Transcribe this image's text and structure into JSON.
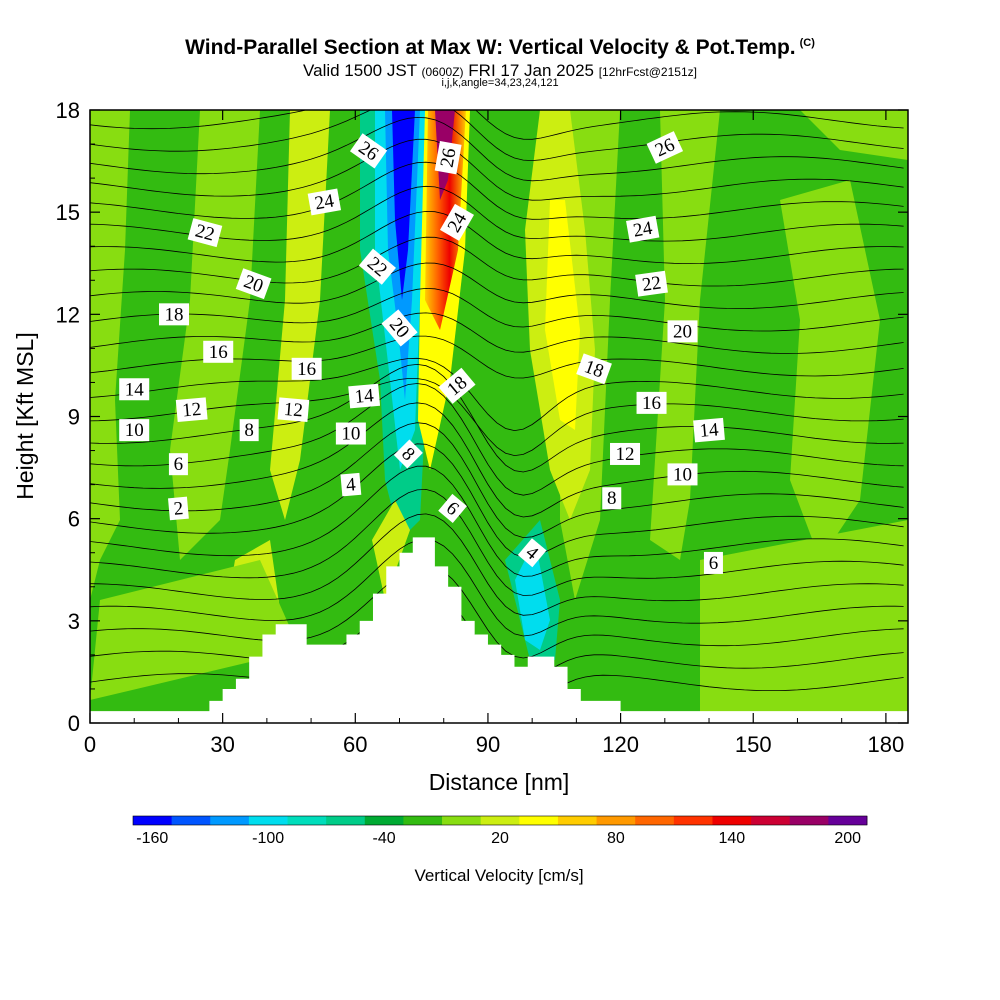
{
  "header": {
    "title": "Wind-Parallel Section at Max W: Vertical Velocity & Pot.Temp.",
    "copyright": "(C)",
    "valid_prefix": "Valid 1500 JST",
    "valid_z": "(0600Z)",
    "valid_date": "FRI 17 Jan 2025",
    "valid_fcst": "[12hrFcst@2151z]",
    "params": "i,j,k,angle=34,23,24,121"
  },
  "colors": {
    "scale": [
      "#0000ff",
      "#0055ff",
      "#0099ff",
      "#00ddee",
      "#00ddbb",
      "#00cc88",
      "#00aa33",
      "#33bb11",
      "#88dd11",
      "#ccee11",
      "#ffff00",
      "#ffcc00",
      "#ff9900",
      "#ff6600",
      "#ff3300",
      "#ee0000",
      "#cc0033",
      "#990066",
      "#660099"
    ],
    "background_w": "#33bb11",
    "terrain": "#ffffff"
  },
  "colorbar": {
    "labels": [
      "-160",
      "-100",
      "-40",
      "20",
      "80",
      "140",
      "200"
    ],
    "title": "Vertical Velocity [cm/s]"
  },
  "chart_data": {
    "type": "heatmap",
    "title": "Wind-Parallel Section at Max W: Vertical Velocity & Pot.Temp.",
    "xlabel": "Distance [nm]",
    "ylabel": "Height [Kft MSL]",
    "xlim": [
      0,
      185
    ],
    "ylim": [
      0,
      18
    ],
    "x_ticks": [
      "0",
      "30",
      "60",
      "90",
      "120",
      "150",
      "180"
    ],
    "y_ticks": [
      "0",
      "3",
      "6",
      "9",
      "12",
      "15",
      "18"
    ],
    "colorbar_values": [
      -160,
      -100,
      -40,
      20,
      80,
      140,
      200
    ],
    "colorbar_label": "Vertical Velocity [cm/s]",
    "terrain_profile": [
      {
        "x": 0,
        "h": 0.35
      },
      {
        "x": 25,
        "h": 0.35
      },
      {
        "x": 27,
        "h": 0.65
      },
      {
        "x": 30,
        "h": 1.0
      },
      {
        "x": 33,
        "h": 1.3
      },
      {
        "x": 36,
        "h": 1.95
      },
      {
        "x": 39,
        "h": 2.6
      },
      {
        "x": 42,
        "h": 2.9
      },
      {
        "x": 49,
        "h": 2.3
      },
      {
        "x": 58,
        "h": 2.6
      },
      {
        "x": 61,
        "h": 3.0
      },
      {
        "x": 64,
        "h": 3.8
      },
      {
        "x": 67,
        "h": 4.6
      },
      {
        "x": 70,
        "h": 5.0
      },
      {
        "x": 73,
        "h": 5.45
      },
      {
        "x": 78,
        "h": 4.6
      },
      {
        "x": 81,
        "h": 4.0
      },
      {
        "x": 84,
        "h": 3.0
      },
      {
        "x": 87,
        "h": 2.6
      },
      {
        "x": 90,
        "h": 2.3
      },
      {
        "x": 93,
        "h": 2.0
      },
      {
        "x": 96,
        "h": 1.65
      },
      {
        "x": 99,
        "h": 1.95
      },
      {
        "x": 105,
        "h": 1.65
      },
      {
        "x": 108,
        "h": 1.0
      },
      {
        "x": 111,
        "h": 0.65
      },
      {
        "x": 120,
        "h": 0.35
      },
      {
        "x": 185,
        "h": 0.35
      }
    ],
    "w_features": [
      {
        "name": "downdraft",
        "x_top": 71,
        "x_bottom": 73,
        "h_bottom": 5.5,
        "value": -160
      },
      {
        "name": "updraft",
        "x_top": 79,
        "x_bottom": 75,
        "h_bottom": 6.5,
        "value": 200
      },
      {
        "name": "lee_updraft",
        "x": 102,
        "h_range": [
          6,
          14
        ],
        "value": 80
      },
      {
        "name": "lee_downdraft",
        "x": 100,
        "h_range": [
          1.5,
          6
        ],
        "value": -100
      }
    ],
    "theta_contour_labels": [
      {
        "text": "26",
        "x": 63,
        "y": 16.8,
        "angle": 35
      },
      {
        "text": "26",
        "x": 81,
        "y": 16.6,
        "angle": -80
      },
      {
        "text": "26",
        "x": 130,
        "y": 16.9,
        "angle": -25
      },
      {
        "text": "24",
        "x": 53,
        "y": 15.3,
        "angle": -10
      },
      {
        "text": "24",
        "x": 83,
        "y": 14.7,
        "angle": -60
      },
      {
        "text": "24",
        "x": 125,
        "y": 14.5,
        "angle": -10
      },
      {
        "text": "22",
        "x": 26,
        "y": 14.4,
        "angle": 15
      },
      {
        "text": "22",
        "x": 65,
        "y": 13.4,
        "angle": 40
      },
      {
        "text": "22",
        "x": 127,
        "y": 12.9,
        "angle": -8
      },
      {
        "text": "20",
        "x": 37,
        "y": 12.9,
        "angle": 20
      },
      {
        "text": "20",
        "x": 70,
        "y": 11.6,
        "angle": 50
      },
      {
        "text": "20",
        "x": 134,
        "y": 11.5,
        "angle": 0
      },
      {
        "text": "18",
        "x": 19,
        "y": 12.0,
        "angle": 0
      },
      {
        "text": "18",
        "x": 83,
        "y": 9.9,
        "angle": -40
      },
      {
        "text": "18",
        "x": 114,
        "y": 10.4,
        "angle": 20
      },
      {
        "text": "16",
        "x": 29,
        "y": 10.9,
        "angle": 0
      },
      {
        "text": "16",
        "x": 49,
        "y": 10.4,
        "angle": 0
      },
      {
        "text": "16",
        "x": 127,
        "y": 9.4,
        "angle": 0
      },
      {
        "text": "14",
        "x": 10,
        "y": 9.8,
        "angle": 0
      },
      {
        "text": "14",
        "x": 62,
        "y": 9.6,
        "angle": -5
      },
      {
        "text": "14",
        "x": 140,
        "y": 8.6,
        "angle": -5
      },
      {
        "text": "12",
        "x": 23,
        "y": 9.2,
        "angle": -5
      },
      {
        "text": "12",
        "x": 46,
        "y": 9.2,
        "angle": 5
      },
      {
        "text": "12",
        "x": 121,
        "y": 7.9,
        "angle": 0
      },
      {
        "text": "10",
        "x": 10,
        "y": 8.6,
        "angle": 0
      },
      {
        "text": "10",
        "x": 59,
        "y": 8.5,
        "angle": 0
      },
      {
        "text": "10",
        "x": 134,
        "y": 7.3,
        "angle": 0
      },
      {
        "text": "8",
        "x": 36,
        "y": 8.6,
        "angle": 0
      },
      {
        "text": "8",
        "x": 72,
        "y": 7.9,
        "angle": 45
      },
      {
        "text": "8",
        "x": 118,
        "y": 6.6,
        "angle": 0
      },
      {
        "text": "6",
        "x": 20,
        "y": 7.6,
        "angle": 0
      },
      {
        "text": "6",
        "x": 82,
        "y": 6.3,
        "angle": 40
      },
      {
        "text": "6",
        "x": 141,
        "y": 4.7,
        "angle": 0
      },
      {
        "text": "4",
        "x": 59,
        "y": 7.0,
        "angle": -5
      },
      {
        "text": "4",
        "x": 100,
        "y": 5.0,
        "angle": 40
      },
      {
        "text": "2",
        "x": 20,
        "y": 6.3,
        "angle": -5
      }
    ]
  }
}
